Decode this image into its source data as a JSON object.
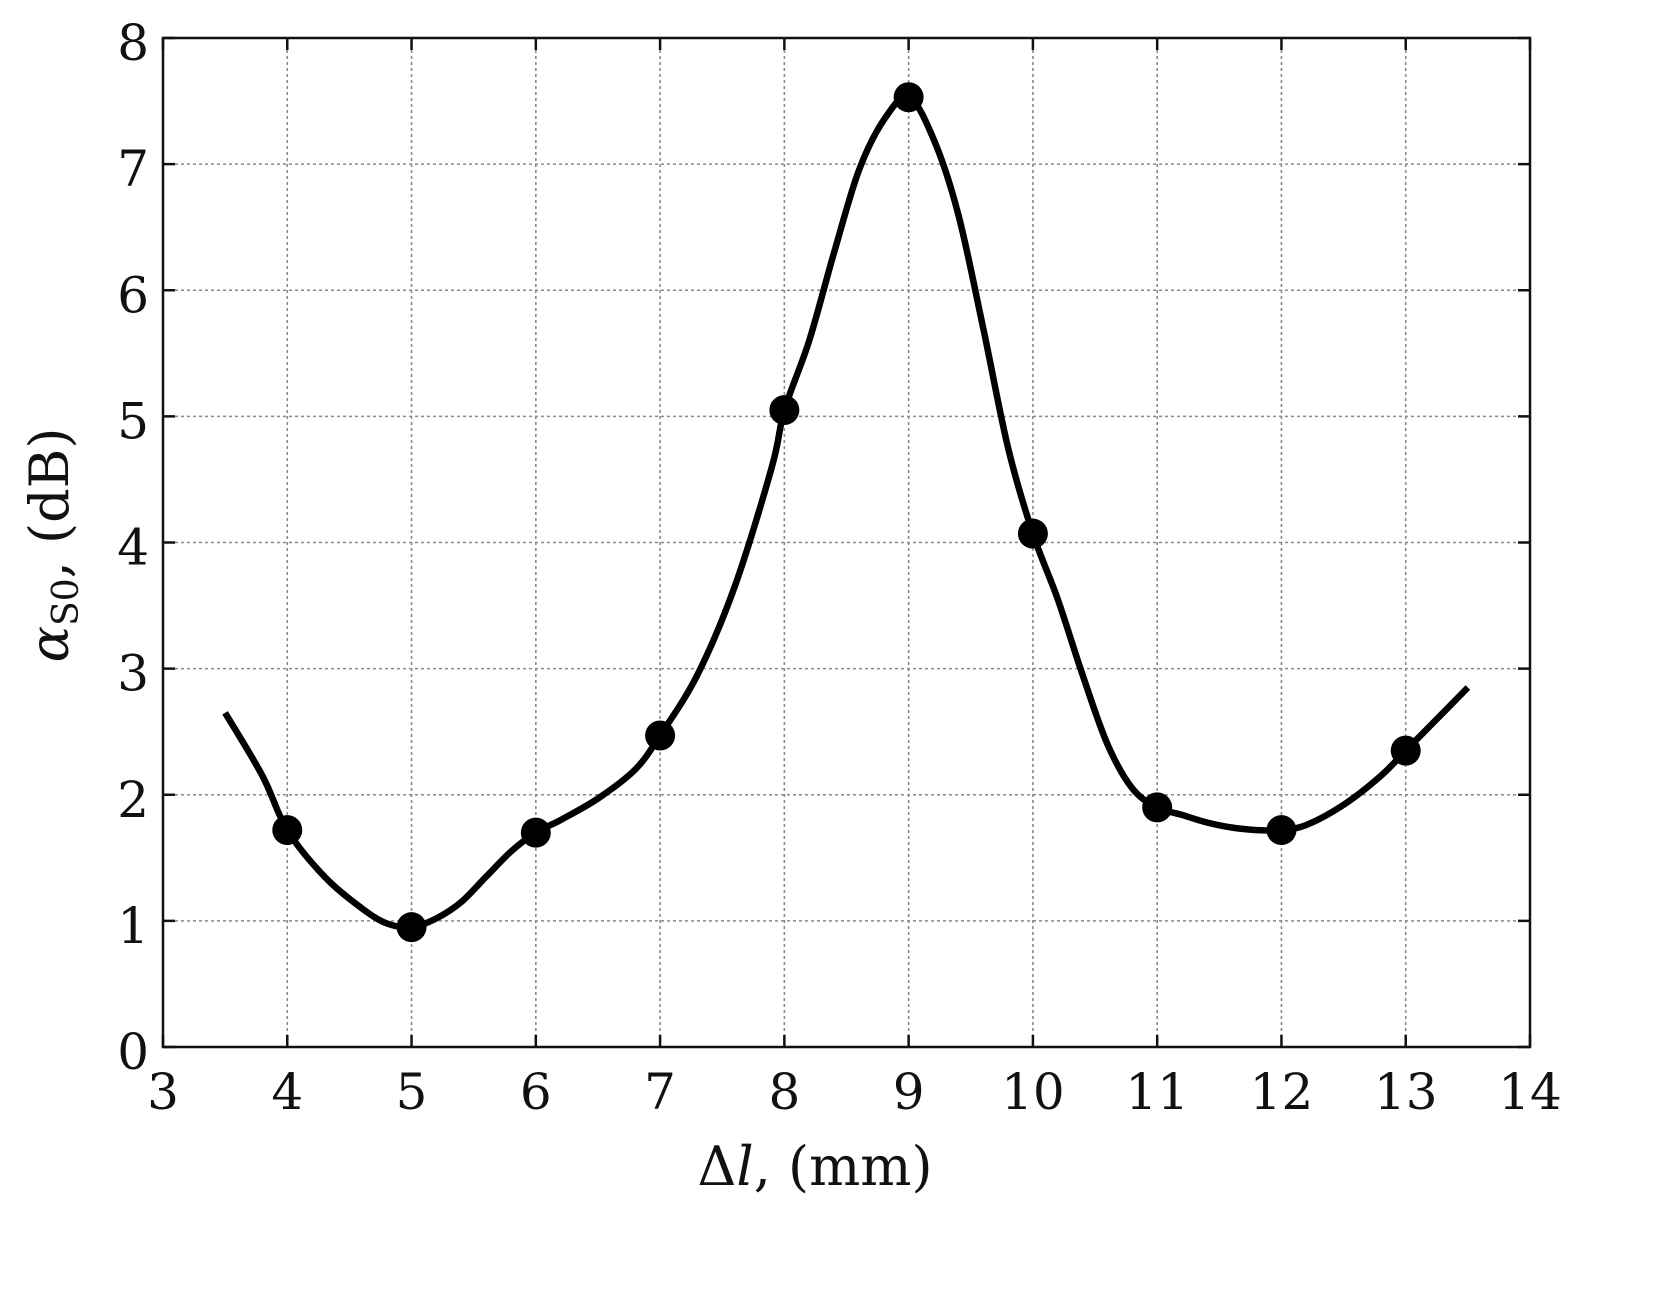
{
  "chart_data": {
    "type": "line",
    "title": "",
    "xlabel_parts": {
      "symbol": "Δ",
      "var": "l",
      "rest": ", (mm)"
    },
    "ylabel_parts": {
      "symbol": "α",
      "sub": "S0",
      "rest": ", (dB)"
    },
    "xlim": [
      3,
      14
    ],
    "ylim": [
      0,
      8
    ],
    "x_ticks": [
      "3",
      "4",
      "5",
      "6",
      "7",
      "8",
      "9",
      "10",
      "11",
      "12",
      "13",
      "14"
    ],
    "y_ticks": [
      "0",
      "1",
      "2",
      "3",
      "4",
      "5",
      "6",
      "7",
      "8"
    ],
    "grid": true,
    "legend": "none",
    "line_color": "#000000",
    "series": [
      {
        "markers": {
          "x": [
            4,
            5,
            6,
            7,
            8,
            9,
            10,
            11,
            12,
            13
          ],
          "y": [
            1.72,
            0.95,
            1.7,
            2.47,
            5.05,
            7.53,
            4.07,
            1.9,
            1.72,
            2.35
          ]
        },
        "curve": {
          "x": [
            3.5,
            3.8,
            4.0,
            4.3,
            4.6,
            4.8,
            5.0,
            5.2,
            5.4,
            5.6,
            5.8,
            6.0,
            6.2,
            6.5,
            6.8,
            7.0,
            7.3,
            7.6,
            7.9,
            8.0,
            8.2,
            8.4,
            8.6,
            8.8,
            9.0,
            9.2,
            9.4,
            9.6,
            9.8,
            10.0,
            10.2,
            10.4,
            10.6,
            10.8,
            11.0,
            11.2,
            11.4,
            11.6,
            11.8,
            12.0,
            12.2,
            12.5,
            12.8,
            13.0,
            13.2,
            13.5
          ],
          "y": [
            2.65,
            2.15,
            1.72,
            1.35,
            1.1,
            0.98,
            0.95,
            1.02,
            1.15,
            1.35,
            1.55,
            1.7,
            1.8,
            1.97,
            2.2,
            2.47,
            2.95,
            3.65,
            4.6,
            5.05,
            5.6,
            6.3,
            6.95,
            7.35,
            7.53,
            7.2,
            6.6,
            5.7,
            4.75,
            4.07,
            3.55,
            2.95,
            2.4,
            2.05,
            1.9,
            1.84,
            1.78,
            1.74,
            1.72,
            1.72,
            1.76,
            1.92,
            2.15,
            2.35,
            2.55,
            2.85
          ]
        }
      }
    ]
  }
}
